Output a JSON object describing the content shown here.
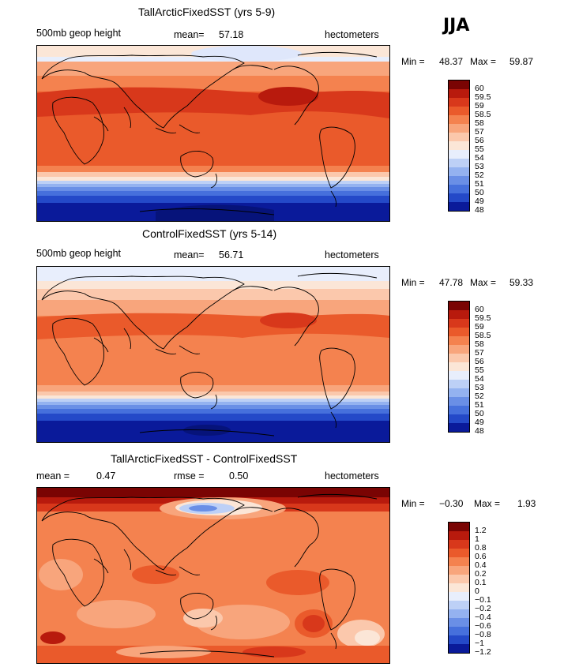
{
  "season": "JJA",
  "panels": [
    {
      "title": "TallArcticFixedSST (yrs 5-9)",
      "left_label": "500mb geop height",
      "mean_label": "mean=",
      "mean_value": "57.18",
      "units": "hectometers",
      "min_label": "Min =",
      "min_value": "48.37",
      "max_label": "Max =",
      "max_value": "59.87",
      "colorbar_labels": [
        "60",
        "59.5",
        "59",
        "58.5",
        "58",
        "57",
        "56",
        "55",
        "54",
        "53",
        "52",
        "51",
        "50",
        "49",
        "48"
      ]
    },
    {
      "title": "ControlFixedSST (yrs 5-14)",
      "left_label": "500mb geop height",
      "mean_label": "mean=",
      "mean_value": "56.71",
      "units": "hectometers",
      "min_label": "Min =",
      "min_value": "47.78",
      "max_label": "Max =",
      "max_value": "59.33",
      "colorbar_labels": [
        "60",
        "59.5",
        "59",
        "58.5",
        "58",
        "57",
        "56",
        "55",
        "54",
        "53",
        "52",
        "51",
        "50",
        "49",
        "48"
      ]
    },
    {
      "title": "TallArcticFixedSST - ControlFixedSST",
      "mean_label": "mean =",
      "mean_value": "0.47",
      "rmse_label": "rmse =",
      "rmse_value": "0.50",
      "units": "hectometers",
      "min_label": "Min =",
      "min_value": "−0.30",
      "max_label": "Max =",
      "max_value": "1.93",
      "colorbar_labels": [
        "1.2",
        "1",
        "0.8",
        "0.6",
        "0.4",
        "0.2",
        "0.1",
        "0",
        "−0.1",
        "−0.2",
        "−0.4",
        "−0.6",
        "−0.8",
        "−1",
        "−1.2"
      ]
    }
  ],
  "colors": {
    "colorbar": [
      "#7a0403",
      "#b81a0d",
      "#d8381b",
      "#ea5a2b",
      "#f4824f",
      "#f8a57c",
      "#fbc8ac",
      "#fbe6d7",
      "#e8eefc",
      "#bdd0f6",
      "#94b2f0",
      "#6a8fe6",
      "#4670dc",
      "#2449c8",
      "#0a1a9a"
    ]
  }
}
